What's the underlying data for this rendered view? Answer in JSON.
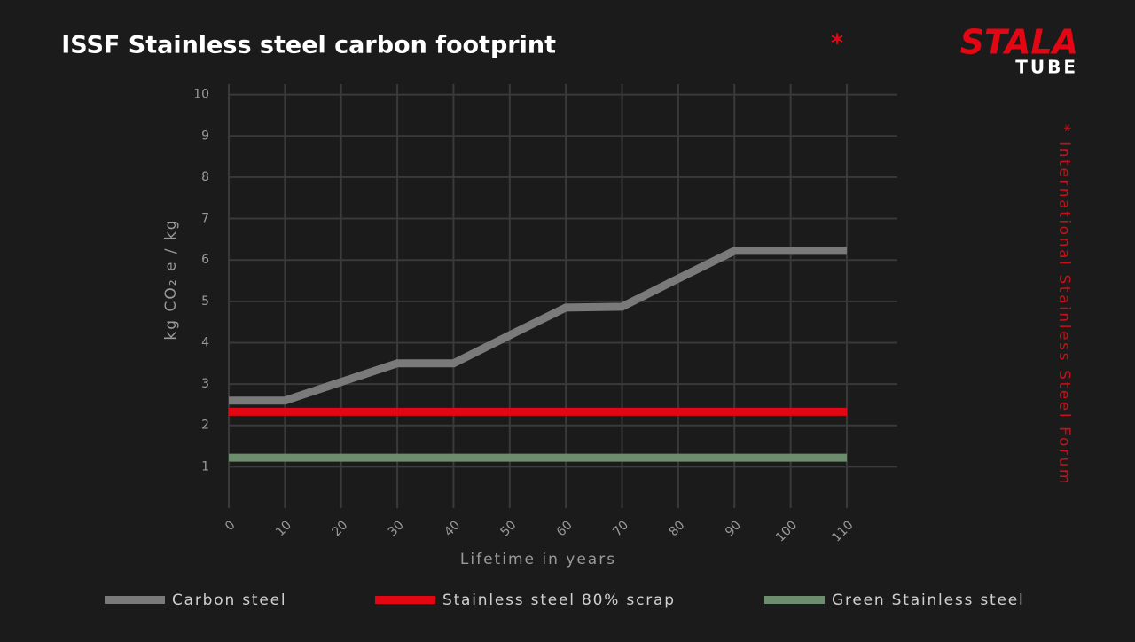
{
  "chart_data": {
    "type": "line",
    "title": "ISSF Stainless steel carbon footprint",
    "title_mark": "*",
    "footnote": "* International Stainless Steel Forum",
    "x_label": "Lifetime in years",
    "y_label": "kg CO₂ e / kg",
    "x": [
      0,
      10,
      20,
      30,
      40,
      50,
      60,
      70,
      80,
      90,
      100,
      110
    ],
    "series": [
      {
        "name": "Carbon steel",
        "color": "#7a7a7a",
        "values": [
          2.6,
          2.6,
          3.05,
          3.5,
          3.5,
          4.18,
          4.85,
          4.87,
          5.55,
          6.22,
          6.22,
          6.22
        ]
      },
      {
        "name": "Stainless steel 80% scrap",
        "color": "#e30613",
        "values": [
          2.33,
          2.33,
          2.33,
          2.33,
          2.33,
          2.33,
          2.33,
          2.33,
          2.33,
          2.33,
          2.33,
          2.33
        ]
      },
      {
        "name": "Green Stainless steel",
        "color": "#6e8c6e",
        "values": [
          1.22,
          1.22,
          1.22,
          1.22,
          1.22,
          1.22,
          1.22,
          1.22,
          1.22,
          1.22,
          1.22,
          1.22
        ]
      }
    ],
    "xlim": [
      0,
      119
    ],
    "ylim": [
      0,
      10.25
    ],
    "xticks": [
      0,
      10,
      20,
      30,
      40,
      50,
      60,
      70,
      80,
      90,
      100,
      110
    ],
    "yticks": [
      1,
      2,
      3,
      4,
      5,
      6,
      7,
      8,
      9,
      10
    ],
    "grid": true
  },
  "logo": {
    "top": "STALA",
    "bottom": "TUBE"
  }
}
